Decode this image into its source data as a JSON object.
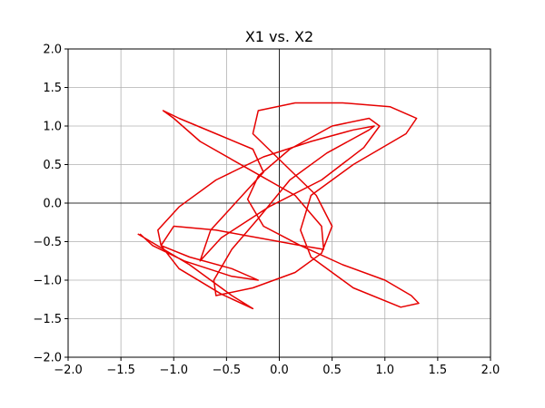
{
  "chart_data": {
    "type": "line",
    "title": "X1 vs. X2",
    "xlabel": "",
    "ylabel": "",
    "xlim": [
      -2.0,
      2.0
    ],
    "ylim": [
      -2.0,
      2.0
    ],
    "xticks": [
      -2.0,
      -1.5,
      -1.0,
      -0.5,
      0.0,
      0.5,
      1.0,
      1.5,
      2.0
    ],
    "yticks": [
      -2.0,
      -1.5,
      -1.0,
      -0.5,
      0.0,
      0.5,
      1.0,
      1.5,
      2.0
    ],
    "xtick_labels": [
      "−2.0",
      "−1.5",
      "−1.0",
      "−0.5",
      "0.0",
      "0.5",
      "1.0",
      "1.5",
      "2.0"
    ],
    "ytick_labels": [
      "−2.0",
      "−1.5",
      "−1.0",
      "−0.5",
      "0.0",
      "0.5",
      "1.0",
      "1.5",
      "2.0"
    ],
    "grid": true,
    "zero_lines": true,
    "series": [
      {
        "color": "#e60000",
        "x": [
          -1.34,
          -0.85,
          -0.45,
          -0.25,
          -0.55,
          -0.95,
          -1.12,
          -1.0,
          -0.6,
          -0.2,
          0.2,
          0.42,
          0.4,
          0.15,
          -0.3,
          -0.75,
          -1.0,
          -1.1,
          -0.95,
          -0.6,
          -0.25,
          -0.15,
          -0.35,
          -0.65,
          -0.75,
          -0.55,
          -0.1,
          0.4,
          0.8,
          0.95,
          0.85,
          0.5,
          0.1,
          -0.2,
          -0.3,
          -0.15,
          0.2,
          0.6,
          1.0,
          1.25,
          1.32,
          1.15,
          0.7,
          0.3,
          0.2,
          0.3,
          0.7,
          1.2,
          1.3,
          1.05,
          0.6,
          0.15,
          -0.2,
          -0.25,
          0.05,
          0.35,
          0.5,
          0.4,
          0.15,
          -0.25,
          -0.6,
          -0.62,
          -0.45,
          -0.2,
          0.1,
          0.45,
          0.85,
          0.9,
          0.7,
          0.3,
          -0.15,
          -0.6,
          -0.95,
          -1.15,
          -1.12,
          -0.85,
          -0.45,
          -0.2,
          -0.45,
          -0.9,
          -1.2,
          -1.32
        ],
        "y": [
          -0.4,
          -0.8,
          -1.2,
          -1.37,
          -1.18,
          -0.85,
          -0.55,
          -0.3,
          -0.35,
          -0.45,
          -0.55,
          -0.6,
          -0.3,
          0.1,
          0.45,
          0.8,
          1.1,
          1.2,
          1.1,
          0.9,
          0.7,
          0.4,
          0.1,
          -0.35,
          -0.75,
          -0.45,
          -0.05,
          0.3,
          0.72,
          1.0,
          1.1,
          1.0,
          0.7,
          0.35,
          0.05,
          -0.3,
          -0.55,
          -0.8,
          -1.0,
          -1.2,
          -1.3,
          -1.35,
          -1.1,
          -0.7,
          -0.35,
          0.1,
          0.5,
          0.9,
          1.1,
          1.25,
          1.3,
          1.3,
          1.2,
          0.9,
          0.5,
          0.1,
          -0.3,
          -0.65,
          -0.9,
          -1.1,
          -1.2,
          -1.0,
          -0.6,
          -0.2,
          0.3,
          0.65,
          0.95,
          1.0,
          0.95,
          0.8,
          0.6,
          0.3,
          -0.05,
          -0.35,
          -0.55,
          -0.7,
          -0.85,
          -1.0,
          -0.95,
          -0.75,
          -0.55,
          -0.4
        ]
      }
    ]
  }
}
